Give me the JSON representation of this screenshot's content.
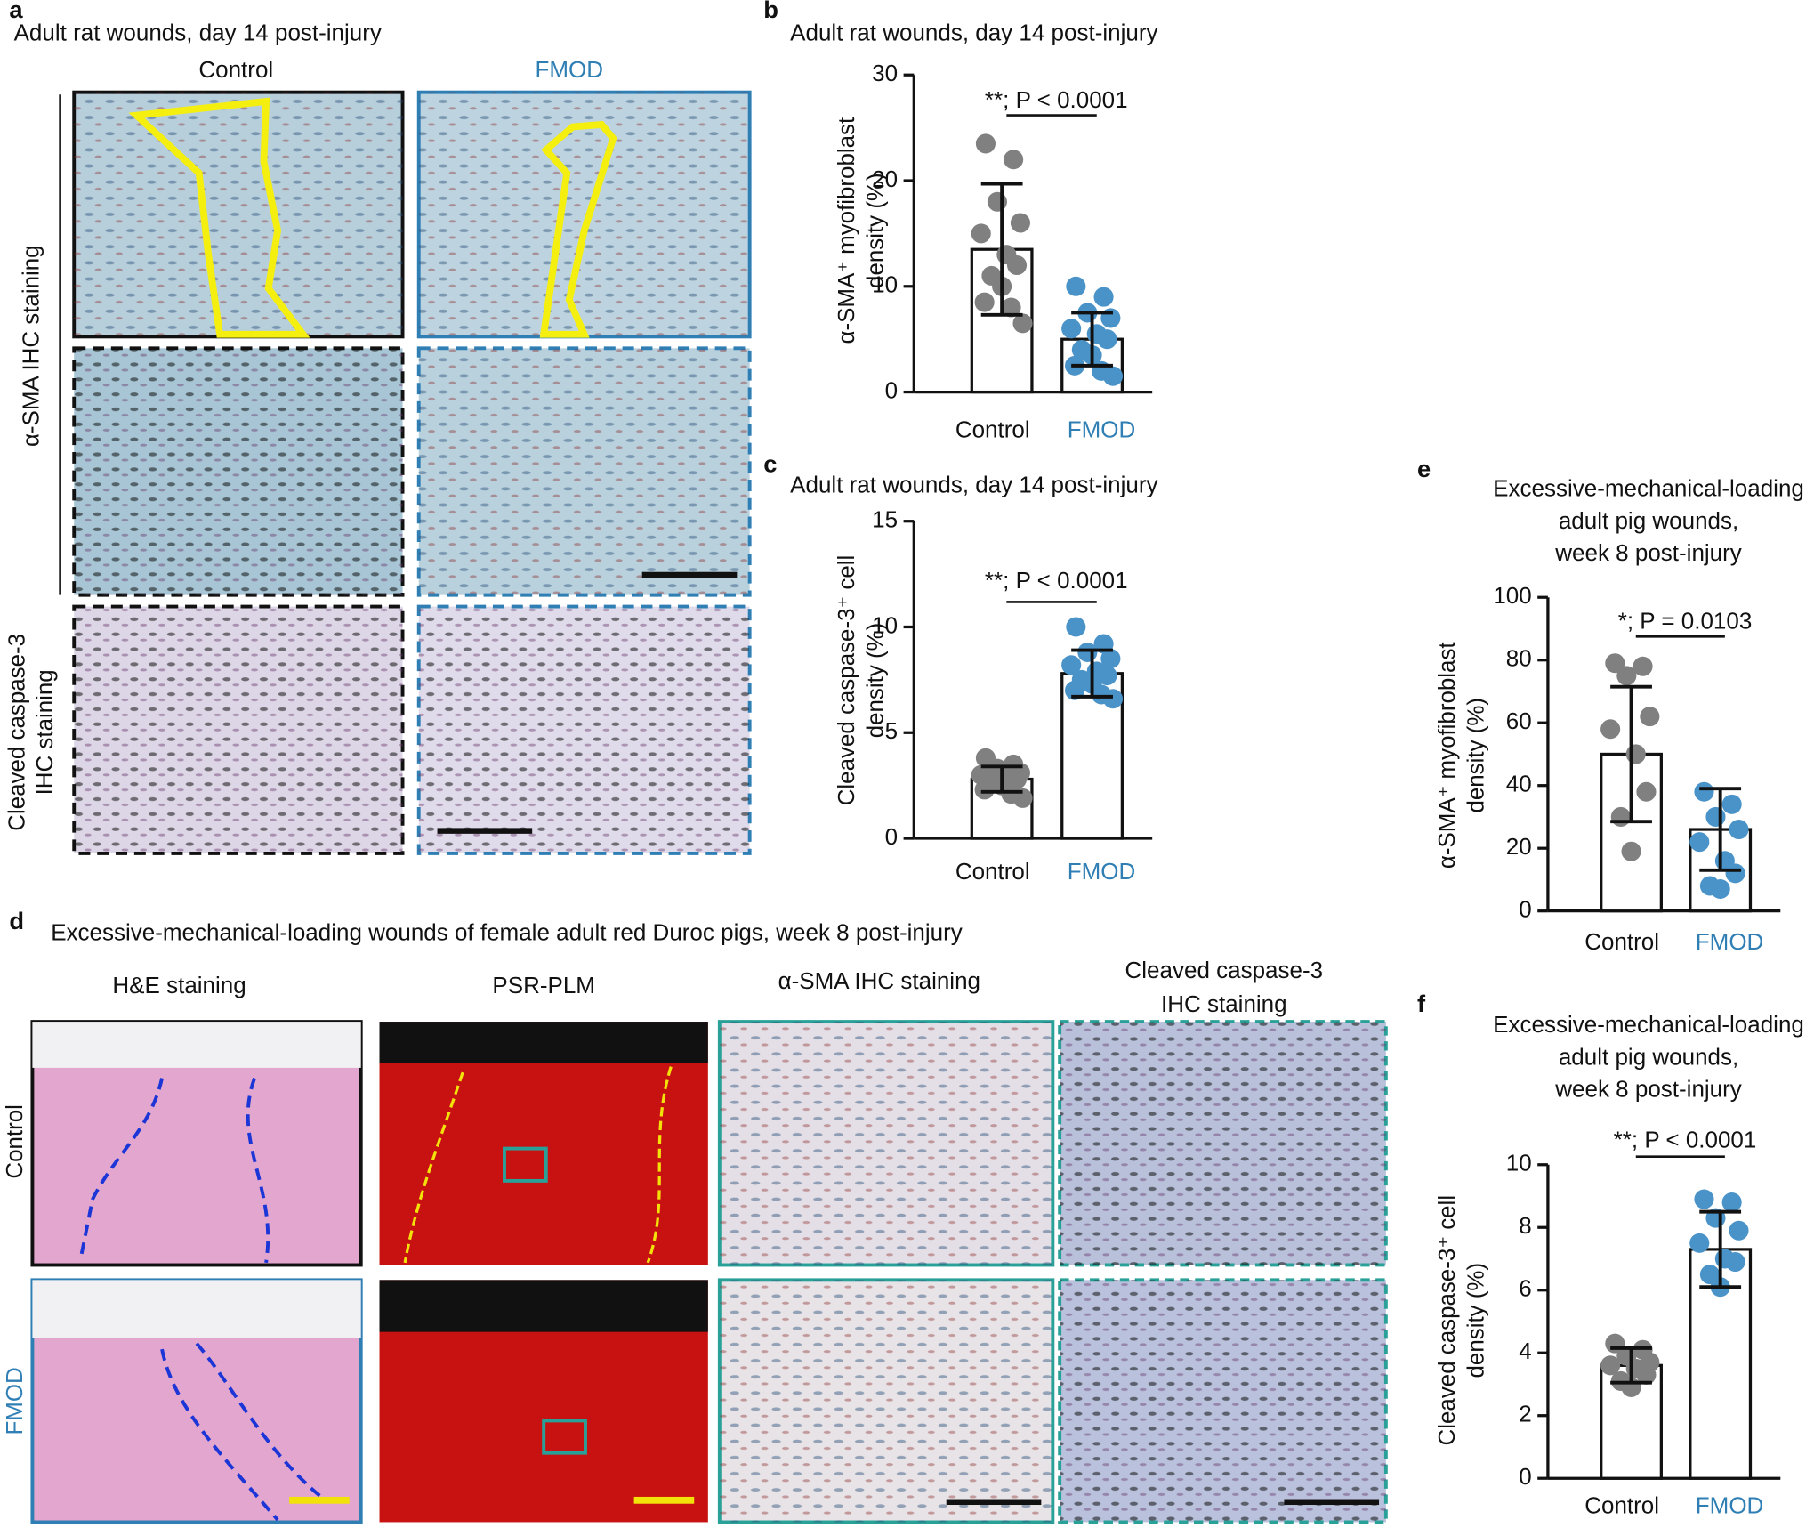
{
  "panel_a": {
    "label": "a",
    "title": "Adult rat wounds, day 14 post-injury",
    "columns": [
      "Control",
      "FMOD"
    ],
    "rows": [
      [
        "α-SMA IHC staining"
      ],
      [
        "Cleaved caspase-3",
        "IHC staining"
      ]
    ]
  },
  "panel_d": {
    "label": "d",
    "title": "Excessive-mechanical-loading wounds of female adult red Duroc pigs, week 8 post-injury",
    "columns": [
      [
        "H&E staining"
      ],
      [
        "PSR-PLM"
      ],
      [
        "α-SMA IHC staining"
      ],
      [
        "Cleaved caspase-3",
        "IHC staining"
      ]
    ],
    "rows": [
      "Control",
      "FMOD"
    ]
  },
  "chart_data": [
    {
      "type": "bar",
      "label": "b",
      "title": [
        "Adult rat wounds, day 14 post-injury"
      ],
      "ylabel": [
        "α-SMA⁺ myofibroblast",
        "density (%)"
      ],
      "categories": [
        "Control",
        "FMOD"
      ],
      "label_colors": [
        "#111111",
        "#2f7fb5"
      ],
      "point_colors": [
        "#808080",
        "#4a93c9"
      ],
      "values": [
        13.5,
        5
      ],
      "errors": [
        6.2,
        2.5
      ],
      "points": [
        [
          23.5,
          22,
          18,
          16,
          15,
          13,
          12,
          11,
          10,
          8.5,
          8,
          6.5
        ],
        [
          10,
          9,
          7.5,
          7,
          6,
          5.5,
          5,
          4,
          3.5,
          2.5,
          2,
          1.5
        ]
      ],
      "annotation": "**; P < 0.0001",
      "ylim": [
        0,
        30
      ],
      "yticks": [
        0,
        10,
        20,
        30
      ]
    },
    {
      "type": "bar",
      "label": "c",
      "title": [
        "Adult rat wounds, day 14 post-injury"
      ],
      "ylabel": [
        "Cleaved caspase-3⁺ cell",
        "density (%)"
      ],
      "categories": [
        "Control",
        "FMOD"
      ],
      "label_colors": [
        "#111111",
        "#2f7fb5"
      ],
      "point_colors": [
        "#808080",
        "#4a93c9"
      ],
      "values": [
        2.8,
        7.8
      ],
      "errors": [
        0.6,
        1.1
      ],
      "points": [
        [
          3.8,
          3.5,
          3.3,
          3.1,
          3,
          2.9,
          2.8,
          2.6,
          2.5,
          2.3,
          2.1,
          1.9
        ],
        [
          10,
          9.2,
          8.8,
          8.5,
          8.2,
          7.9,
          7.7,
          7.5,
          7.3,
          7,
          6.8,
          6.6
        ]
      ],
      "annotation": "**; P < 0.0001",
      "ylim": [
        0,
        15
      ],
      "yticks": [
        0,
        5,
        10,
        15
      ]
    },
    {
      "type": "bar",
      "label": "e",
      "title": [
        "Excessive-mechanical-loading",
        "adult pig wounds,",
        "week 8 post-injury"
      ],
      "ylabel": [
        "α-SMA⁺ myofibroblast",
        "density (%)"
      ],
      "categories": [
        "Control",
        "FMOD"
      ],
      "label_colors": [
        "#111111",
        "#2f7fb5"
      ],
      "point_colors": [
        "#808080",
        "#4a93c9"
      ],
      "values": [
        50,
        26
      ],
      "errors": [
        21.5,
        13
      ],
      "points": [
        [
          79,
          78,
          75,
          62,
          58,
          50,
          38,
          30,
          19
        ],
        [
          38,
          34,
          30,
          26,
          22,
          16,
          12,
          8,
          7
        ]
      ],
      "annotation": "*; P = 0.0103",
      "ylim": [
        0,
        100
      ],
      "yticks": [
        0,
        20,
        40,
        60,
        80,
        100
      ]
    },
    {
      "type": "bar",
      "label": "f",
      "title": [
        "Excessive-mechanical-loading",
        "adult pig wounds,",
        "week 8 post-injury"
      ],
      "ylabel": [
        "Cleaved caspase-3⁺ cell",
        "density (%)"
      ],
      "categories": [
        "Control",
        "FMOD"
      ],
      "label_colors": [
        "#111111",
        "#2f7fb5"
      ],
      "point_colors": [
        "#808080",
        "#4a93c9"
      ],
      "values": [
        3.6,
        7.3
      ],
      "errors": [
        0.55,
        1.2
      ],
      "points": [
        [
          4.3,
          4.1,
          3.9,
          3.7,
          3.6,
          3.5,
          3.3,
          3.1,
          2.9
        ],
        [
          8.9,
          8.8,
          8.3,
          7.9,
          7.5,
          7.0,
          6.9,
          6.5,
          6.1
        ]
      ],
      "annotation": "**; P < 0.0001",
      "ylim": [
        0,
        10
      ],
      "yticks": [
        0,
        2,
        4,
        6,
        8,
        10
      ]
    }
  ]
}
